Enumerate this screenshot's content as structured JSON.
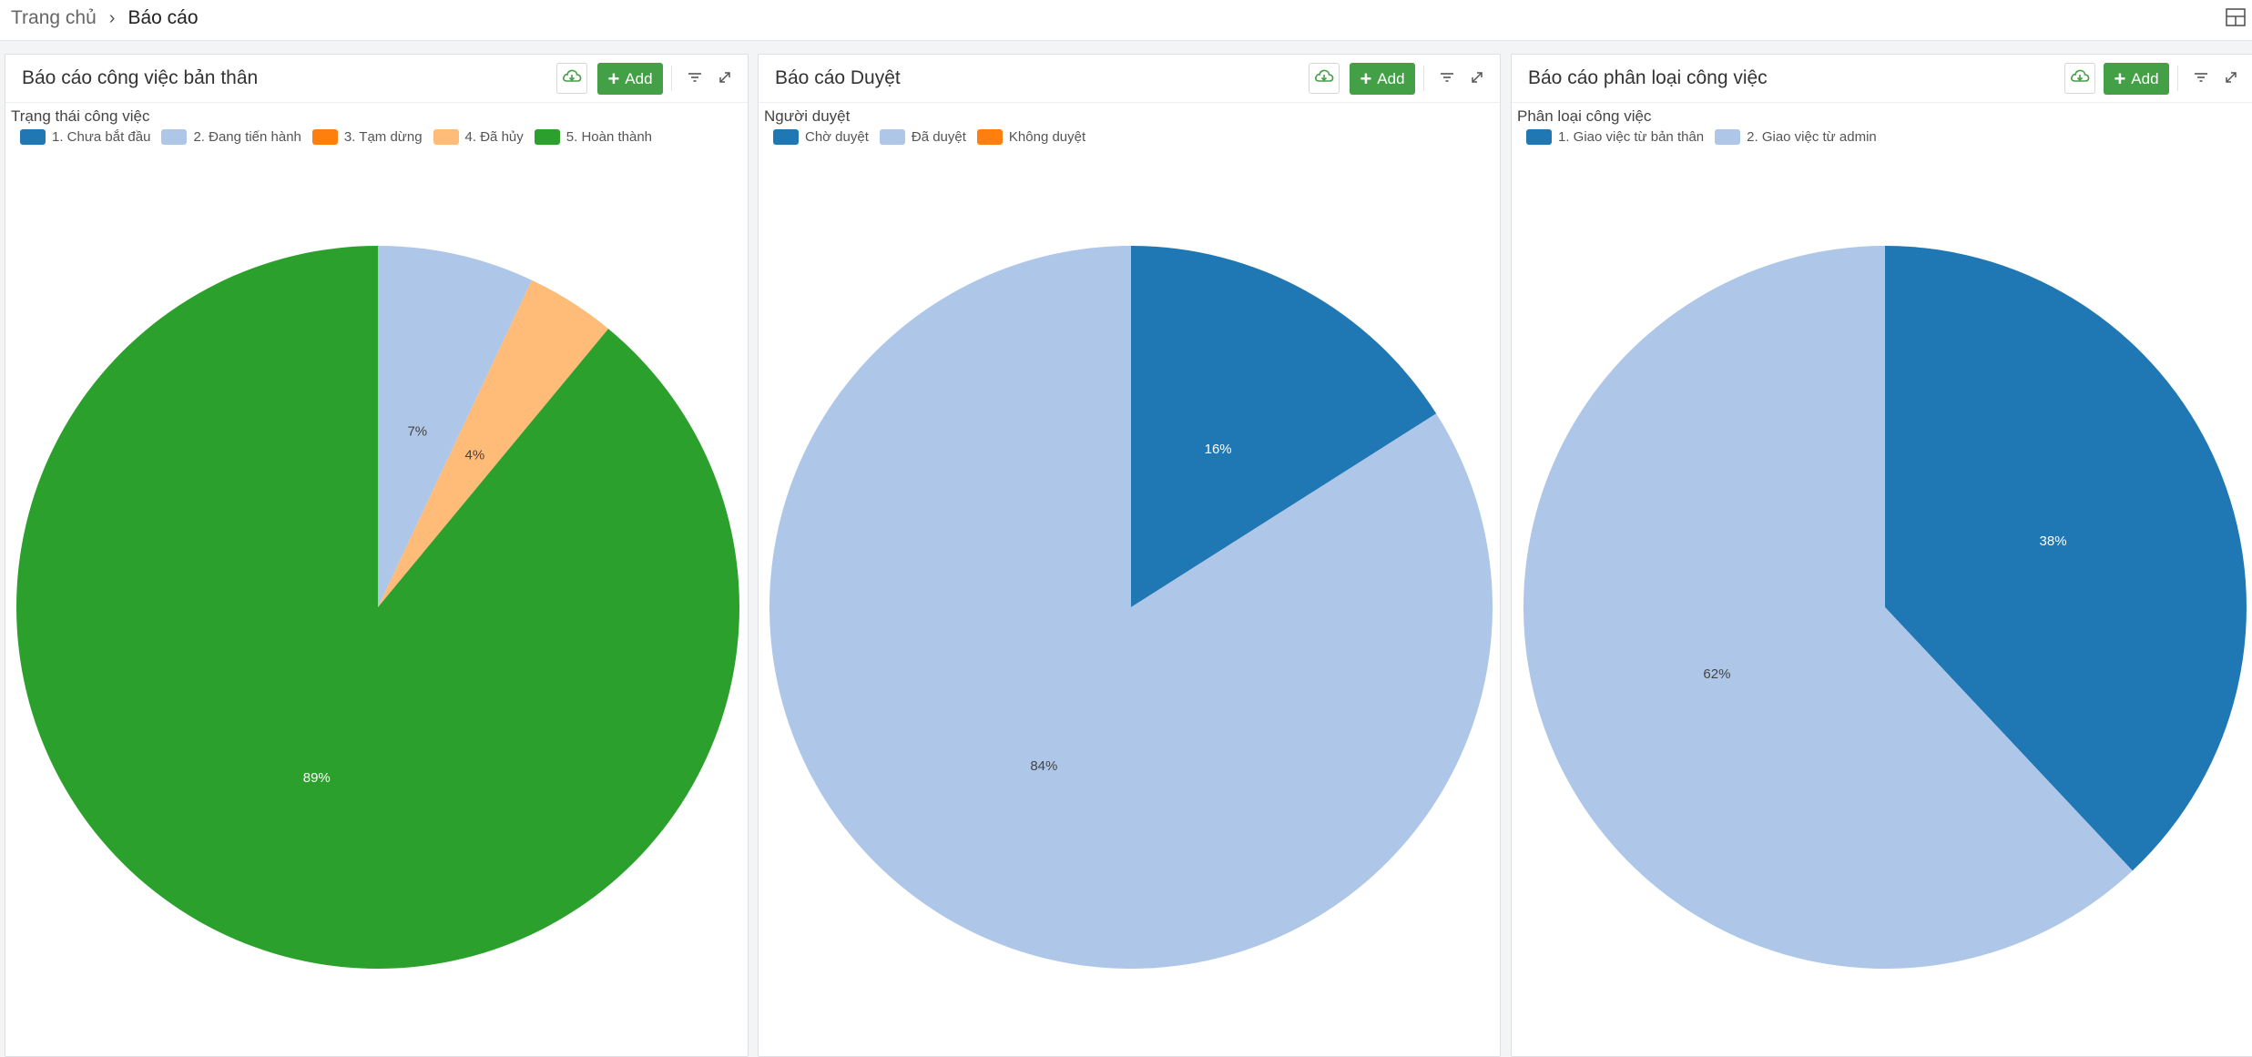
{
  "breadcrumb": {
    "home": "Trang chủ",
    "separator": "›",
    "current": "Báo cáo"
  },
  "toolbar_icons": {
    "layout": "grid-layout-icon",
    "download": "cloud-download-icon",
    "filter": "filter-icon",
    "expand": "expand-icon"
  },
  "colors": {
    "accent_green": "#43a047",
    "dark_blue": "#1f77b4",
    "light_blue": "#aec7e8",
    "orange": "#ff7f0e",
    "light_orange": "#ffbb78",
    "green": "#2ca02c"
  },
  "panels": [
    {
      "title": "Báo cáo công việc bản thân",
      "add_label": "Add",
      "chart_data": {
        "type": "pie",
        "title": "Trạng thái công việc",
        "legend": "top-left",
        "series": [
          {
            "name": "1. Chưa bắt đầu",
            "value": 0,
            "color": "#1f77b4",
            "label": ""
          },
          {
            "name": "2. Đang tiến hành",
            "value": 7,
            "color": "#aec7e8",
            "label": "7%"
          },
          {
            "name": "3. Tạm dừng",
            "value": 0,
            "color": "#ff7f0e",
            "label": ""
          },
          {
            "name": "4. Đã hủy",
            "value": 4,
            "color": "#ffbb78",
            "label": "4%"
          },
          {
            "name": "5. Hoàn thành",
            "value": 89,
            "color": "#2ca02c",
            "label": "89%"
          }
        ]
      }
    },
    {
      "title": "Báo cáo Duyệt",
      "add_label": "Add",
      "chart_data": {
        "type": "pie",
        "title": "Người duyệt",
        "legend": "top-left",
        "series": [
          {
            "name": "Chờ duyệt",
            "value": 16,
            "color": "#1f77b4",
            "label": "16%"
          },
          {
            "name": "Đã duyệt",
            "value": 84,
            "color": "#aec7e8",
            "label": "84%"
          },
          {
            "name": "Không duyệt",
            "value": 0,
            "color": "#ff7f0e",
            "label": ""
          }
        ]
      }
    },
    {
      "title": "Báo cáo phân loại công việc",
      "add_label": "Add",
      "chart_data": {
        "type": "pie",
        "title": "Phân loại công việc",
        "legend": "top-left",
        "series": [
          {
            "name": "1. Giao việc từ bản thân",
            "value": 38,
            "color": "#1f77b4",
            "label": "38%"
          },
          {
            "name": "2. Giao việc từ admin",
            "value": 62,
            "color": "#aec7e8",
            "label": "62%"
          }
        ]
      }
    }
  ]
}
